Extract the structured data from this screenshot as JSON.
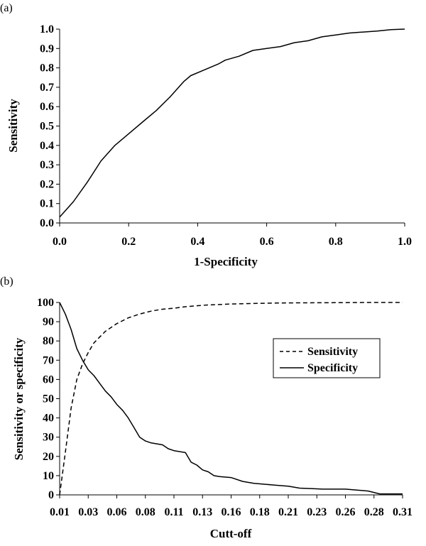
{
  "chart_data": [
    {
      "panel_label": "(a)",
      "type": "line",
      "xlabel": "1-Specificity",
      "ylabel": "Sensitivity",
      "xlim": [
        0,
        1.0
      ],
      "ylim": [
        0,
        1.0
      ],
      "x_ticks": [
        "0.0",
        "0.2",
        "0.4",
        "0.6",
        "0.8",
        "1.0"
      ],
      "y_ticks": [
        "0.0",
        "0.1",
        "0.2",
        "0.3",
        "0.4",
        "0.5",
        "0.6",
        "0.7",
        "0.8",
        "0.9",
        "1.0"
      ],
      "grid": false,
      "series": [
        {
          "style": "solid",
          "x": [
            0.0,
            0.04,
            0.08,
            0.12,
            0.16,
            0.2,
            0.24,
            0.28,
            0.32,
            0.36,
            0.38,
            0.42,
            0.46,
            0.48,
            0.52,
            0.56,
            0.6,
            0.64,
            0.68,
            0.72,
            0.76,
            0.8,
            0.84,
            0.88,
            0.92,
            0.96,
            1.0
          ],
          "y": [
            0.03,
            0.11,
            0.21,
            0.32,
            0.4,
            0.46,
            0.52,
            0.58,
            0.65,
            0.73,
            0.76,
            0.79,
            0.82,
            0.84,
            0.86,
            0.89,
            0.9,
            0.91,
            0.93,
            0.94,
            0.96,
            0.97,
            0.98,
            0.985,
            0.99,
            0.997,
            1.0
          ]
        }
      ]
    },
    {
      "panel_label": "(b)",
      "type": "line",
      "xlabel": "Cutt-off",
      "ylabel": "Sensitivity or specificity",
      "xlim": [
        0.01,
        0.31
      ],
      "ylim": [
        0,
        100
      ],
      "x_ticks": [
        "0.01",
        "0.03",
        "0.06",
        "0.08",
        "0.11",
        "0.13",
        "0.16",
        "0.18",
        "0.21",
        "0.23",
        "0.26",
        "0.28",
        "0.31"
      ],
      "y_ticks": [
        "0",
        "10",
        "20",
        "30",
        "40",
        "50",
        "60",
        "70",
        "80",
        "90",
        "100"
      ],
      "grid": false,
      "legend_position": "right",
      "series": [
        {
          "name": "Sensitivity",
          "style": "dashed",
          "x": [
            0.01,
            0.015,
            0.02,
            0.025,
            0.03,
            0.035,
            0.04,
            0.05,
            0.06,
            0.07,
            0.08,
            0.09,
            0.1,
            0.11,
            0.12,
            0.13,
            0.14,
            0.16,
            0.18,
            0.2,
            0.22,
            0.25,
            0.28,
            0.31
          ],
          "y": [
            0,
            22,
            45,
            60,
            68,
            74,
            79,
            85,
            89,
            92,
            94,
            95.5,
            96.5,
            97,
            97.8,
            98.3,
            98.7,
            99.2,
            99.5,
            99.7,
            99.8,
            99.9,
            100,
            100
          ]
        },
        {
          "name": "Specificity",
          "style": "solid",
          "x": [
            0.01,
            0.015,
            0.02,
            0.025,
            0.03,
            0.035,
            0.04,
            0.045,
            0.05,
            0.055,
            0.06,
            0.065,
            0.07,
            0.075,
            0.08,
            0.085,
            0.09,
            0.1,
            0.105,
            0.11,
            0.12,
            0.125,
            0.13,
            0.135,
            0.14,
            0.145,
            0.15,
            0.16,
            0.17,
            0.175,
            0.18,
            0.19,
            0.2,
            0.21,
            0.22,
            0.23,
            0.24,
            0.25,
            0.26,
            0.27,
            0.28,
            0.29,
            0.31
          ],
          "y": [
            100,
            94,
            86,
            76,
            70,
            65,
            62,
            58,
            54,
            51,
            47,
            44,
            40,
            35,
            30,
            28,
            27,
            26,
            24,
            23,
            22,
            17,
            15.5,
            13,
            12,
            10,
            9.5,
            9,
            7,
            6.5,
            6,
            5.5,
            5,
            4.5,
            3.5,
            3.3,
            3,
            3,
            3,
            2.5,
            2,
            0.5,
            0.5
          ]
        }
      ]
    }
  ]
}
